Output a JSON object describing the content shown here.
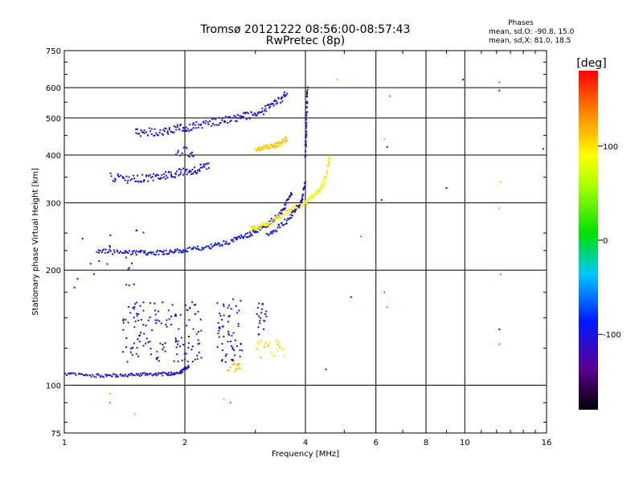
{
  "chart_data": {
    "type": "scatter",
    "title": "Tromsø 20121222 08:56:00-08:57:43",
    "subtitle": "RwPretec (8p)",
    "xlabel": "Frequency [MHz]",
    "ylabel": "Stationary phase Virtual Height [km]",
    "x_scale": "log",
    "y_scale": "log",
    "xlim": [
      1,
      16
    ],
    "ylim": [
      75,
      750
    ],
    "x_ticks": [
      1,
      2,
      4,
      6,
      8,
      10,
      16
    ],
    "x_tick_labels": [
      "1",
      "2",
      "4",
      "6",
      "8",
      "10",
      "16"
    ],
    "y_ticks": [
      75,
      100,
      200,
      300,
      400,
      500,
      600,
      750
    ],
    "y_tick_labels": [
      "75",
      "100",
      "200",
      "300",
      "400",
      "500",
      "600",
      "750"
    ],
    "grid": true,
    "stats": {
      "heading": "Phases",
      "line_o": "mean, sd,O: -90.8, 15.0",
      "line_x": "mean, sd,X:  81.0, 18.5"
    },
    "colorbar": {
      "label": "[deg]",
      "ticks": [
        100,
        0,
        -100
      ],
      "tick_labels": [
        "100",
        "0",
        "-100"
      ],
      "range": [
        -180,
        180
      ]
    },
    "traces": [
      {
        "pts": [
          [
            1.0,
            107
          ],
          [
            1.2,
            106
          ],
          [
            1.4,
            106
          ],
          [
            1.6,
            107
          ],
          [
            1.8,
            107
          ],
          [
            1.95,
            108
          ],
          [
            2.05,
            112
          ]
        ],
        "phase": -105,
        "spread": 0.005
      },
      {
        "pts": [
          [
            1.2,
            225
          ],
          [
            1.4,
            222
          ],
          [
            1.6,
            222
          ],
          [
            1.8,
            223
          ],
          [
            2.0,
            225
          ],
          [
            2.3,
            230
          ],
          [
            2.6,
            238
          ],
          [
            2.9,
            248
          ],
          [
            3.2,
            262
          ],
          [
            3.5,
            285
          ],
          [
            3.7,
            318
          ]
        ],
        "phase": -95,
        "spread": 0.007
      },
      {
        "pts": [
          [
            1.3,
            350
          ],
          [
            1.5,
            345
          ],
          [
            1.7,
            350
          ],
          [
            1.9,
            358
          ],
          [
            2.1,
            365
          ],
          [
            2.3,
            375
          ]
        ],
        "phase": -100,
        "spread": 0.012
      },
      {
        "pts": [
          [
            1.5,
            458
          ],
          [
            1.7,
            460
          ],
          [
            1.9,
            468
          ],
          [
            2.1,
            475
          ],
          [
            2.4,
            490
          ],
          [
            2.7,
            500
          ],
          [
            3.0,
            510
          ],
          [
            3.3,
            535
          ],
          [
            3.6,
            580
          ]
        ],
        "phase": -100,
        "spread": 0.012
      },
      {
        "pts": [
          [
            2.9,
            255
          ],
          [
            3.1,
            260
          ],
          [
            3.4,
            272
          ],
          [
            3.7,
            290
          ],
          [
            4.0,
            300
          ],
          [
            4.3,
            320
          ],
          [
            4.5,
            350
          ],
          [
            4.6,
            400
          ]
        ],
        "phase": 95,
        "spread": 0.008
      },
      {
        "pts": [
          [
            3.0,
            415
          ],
          [
            3.2,
            418
          ],
          [
            3.4,
            425
          ],
          [
            3.6,
            440
          ]
        ],
        "phase": 110,
        "spread": 0.008
      },
      {
        "pts": [
          [
            4.0,
            400
          ],
          [
            4.02,
            480
          ],
          [
            4.05,
            600
          ]
        ],
        "phase": -100,
        "spread": 0.01
      },
      {
        "pts": [
          [
            3.2,
            245
          ],
          [
            3.6,
            270
          ],
          [
            3.9,
            300
          ],
          [
            4.0,
            340
          ]
        ],
        "phase": -100,
        "spread": 0.008
      }
    ],
    "clouds": [
      {
        "x": [
          1.4,
          2.2
        ],
        "y": [
          115,
          165
        ],
        "phase": -100,
        "n": 140
      },
      {
        "x": [
          2.4,
          2.8
        ],
        "y": [
          115,
          170
        ],
        "phase": -100,
        "n": 60
      },
      {
        "x": [
          3.0,
          3.2
        ],
        "y": [
          135,
          165
        ],
        "phase": -100,
        "n": 20
      },
      {
        "x": [
          2.55,
          2.75
        ],
        "y": [
          108,
          114
        ],
        "phase": 115,
        "n": 15
      },
      {
        "x": [
          3.0,
          3.6
        ],
        "y": [
          118,
          132
        ],
        "phase": 105,
        "n": 25
      },
      {
        "x": [
          1.05,
          1.6
        ],
        "y": [
          180,
          260
        ],
        "phase": -100,
        "n": 20
      },
      {
        "x": [
          1.9,
          2.1
        ],
        "y": [
          395,
          420
        ],
        "phase": -100,
        "n": 14
      }
    ],
    "sparse_points": [
      {
        "x": 1.3,
        "y": 90,
        "phase": 150
      },
      {
        "x": 1.3,
        "y": 95,
        "phase": 120
      },
      {
        "x": 1.5,
        "y": 84,
        "phase": 40
      },
      {
        "x": 2.5,
        "y": 92,
        "phase": 40
      },
      {
        "x": 2.6,
        "y": 90,
        "phase": 150
      },
      {
        "x": 4.5,
        "y": 110,
        "phase": -100
      },
      {
        "x": 5.2,
        "y": 170,
        "phase": -100
      },
      {
        "x": 6.3,
        "y": 175,
        "phase": 150
      },
      {
        "x": 6.4,
        "y": 160,
        "phase": 140
      },
      {
        "x": 6.2,
        "y": 305,
        "phase": -100
      },
      {
        "x": 6.4,
        "y": 420,
        "phase": -100
      },
      {
        "x": 6.3,
        "y": 440,
        "phase": 120
      },
      {
        "x": 6.5,
        "y": 570,
        "phase": 10
      },
      {
        "x": 9.0,
        "y": 328,
        "phase": -100
      },
      {
        "x": 9.9,
        "y": 630,
        "phase": -100
      },
      {
        "x": 12.2,
        "y": 620,
        "phase": 150
      },
      {
        "x": 12.2,
        "y": 590,
        "phase": -100
      },
      {
        "x": 12.3,
        "y": 340,
        "phase": 110
      },
      {
        "x": 12.2,
        "y": 290,
        "phase": 120
      },
      {
        "x": 12.2,
        "y": 140,
        "phase": -100
      },
      {
        "x": 12.3,
        "y": 195,
        "phase": 10
      },
      {
        "x": 12.2,
        "y": 128,
        "phase": 150
      },
      {
        "x": 15.7,
        "y": 415,
        "phase": -100
      },
      {
        "x": 5.5,
        "y": 245,
        "phase": 10
      },
      {
        "x": 4.8,
        "y": 630,
        "phase": 110
      }
    ]
  }
}
